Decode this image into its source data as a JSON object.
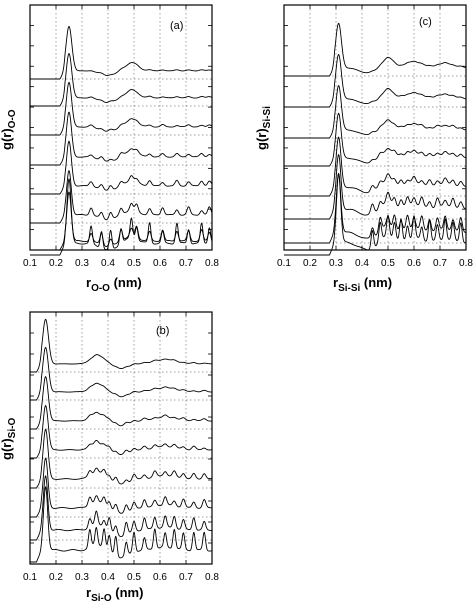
{
  "chart_data": [
    {
      "id": "a",
      "type": "line",
      "panel_label": "(a)",
      "ylabel_main": "g(r)",
      "ylabel_sub": "O-O",
      "xlabel_main": "r",
      "xlabel_sub": "O-O",
      "xlabel_unit": " (nm)",
      "xlim": [
        0.1,
        0.8
      ],
      "x_ticks": [
        "0.1",
        "0.2",
        "0.3",
        "0.4",
        "0.5",
        "0.6",
        "0.7",
        "0.8"
      ],
      "grid": true,
      "n_curves": 8,
      "features": {
        "main_peak": 0.25,
        "peaks": [
          [
            0.49,
            0.9,
            0.025
          ]
        ],
        "dips": [
          0.4
        ],
        "fine_peaks": [
          0.335,
          0.375,
          0.41,
          0.45,
          0.49,
          0.51,
          0.56,
          0.61,
          0.665,
          0.71,
          0.76,
          0.79
        ]
      }
    },
    {
      "id": "b",
      "type": "line",
      "panel_label": "(b)",
      "ylabel_main": "g(r)",
      "ylabel_sub": "Si-O",
      "xlabel_main": "r",
      "xlabel_sub": "Si-O",
      "xlabel_unit": " (nm)",
      "xlim": [
        0.1,
        0.8
      ],
      "x_ticks": [
        "0.1",
        "0.2",
        "0.3",
        "0.4",
        "0.5",
        "0.6",
        "0.7",
        "0.8"
      ],
      "grid": true,
      "n_curves": 8,
      "features": {
        "main_peak": 0.16,
        "peaks": [
          [
            0.36,
            1.0,
            0.025
          ],
          [
            0.62,
            0.5,
            0.04
          ]
        ],
        "dips": [
          0.45
        ],
        "fine_peaks": [
          0.33,
          0.355,
          0.385,
          0.405,
          0.43,
          0.47,
          0.5,
          0.54,
          0.58,
          0.62,
          0.655,
          0.69,
          0.73,
          0.77
        ]
      }
    },
    {
      "id": "c",
      "type": "line",
      "panel_label": "(c)",
      "ylabel_main": "g(r)",
      "ylabel_sub": "Si-Si",
      "xlabel_main": "r",
      "xlabel_sub": "Si-Si",
      "xlabel_unit": " (nm)",
      "xlim": [
        0.1,
        0.8
      ],
      "x_ticks": [
        "0.1",
        "0.2",
        "0.3",
        "0.4",
        "0.5",
        "0.6",
        "0.7",
        "0.8"
      ],
      "grid": true,
      "n_curves": 8,
      "features": {
        "main_peak": 0.31,
        "peaks": [
          [
            0.5,
            1.2,
            0.02
          ],
          [
            0.6,
            0.7,
            0.03
          ],
          [
            0.72,
            0.5,
            0.03
          ]
        ],
        "dips": [
          0.42
        ],
        "fine_peaks": [
          0.44,
          0.47,
          0.5,
          0.525,
          0.55,
          0.575,
          0.6,
          0.63,
          0.66,
          0.69,
          0.72,
          0.75,
          0.78
        ]
      }
    }
  ]
}
